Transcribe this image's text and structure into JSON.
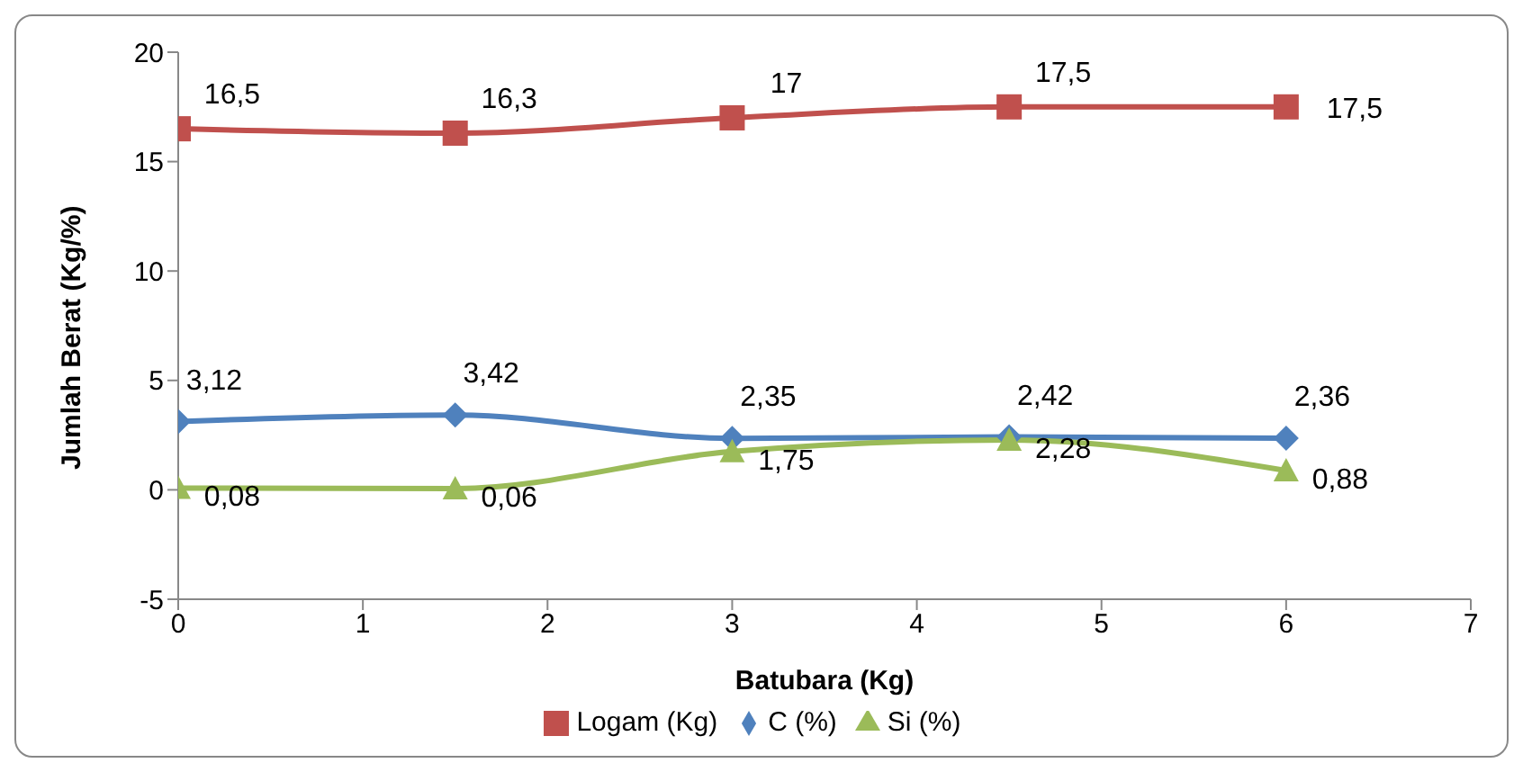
{
  "chart_data": {
    "type": "line",
    "xlabel": "Batubara (Kg)",
    "ylabel": "Jumlah Berat (Kg/%)",
    "x": [
      0,
      1.5,
      3,
      4.5,
      6
    ],
    "xlim": [
      0,
      7
    ],
    "xticks": [
      0,
      1,
      2,
      3,
      4,
      5,
      6,
      7
    ],
    "ylim": [
      -5,
      20
    ],
    "yticks": [
      -5,
      0,
      5,
      10,
      15,
      20
    ],
    "grid": false,
    "legend": "bottom",
    "series": [
      {
        "name": "Logam (Kg)",
        "color": "#c0504d",
        "marker": "square",
        "values": [
          16.5,
          16.3,
          17,
          17.5,
          17.5
        ],
        "value_labels": [
          "16,5",
          "16,3",
          "17",
          "17,5",
          "17,5"
        ]
      },
      {
        "name": "C (%)",
        "color": "#4f81bd",
        "marker": "diamond",
        "values": [
          3.12,
          3.42,
          2.35,
          2.42,
          2.36
        ],
        "value_labels": [
          "3,12",
          "3,42",
          "2,35",
          "2,42",
          "2,36"
        ]
      },
      {
        "name": "Si (%)",
        "color": "#9bbb59",
        "marker": "triangle",
        "values": [
          0.08,
          0.06,
          1.75,
          2.28,
          0.88
        ],
        "value_labels": [
          "0,08",
          "0,06",
          "1,75",
          "2,28",
          "0,88"
        ]
      }
    ]
  }
}
